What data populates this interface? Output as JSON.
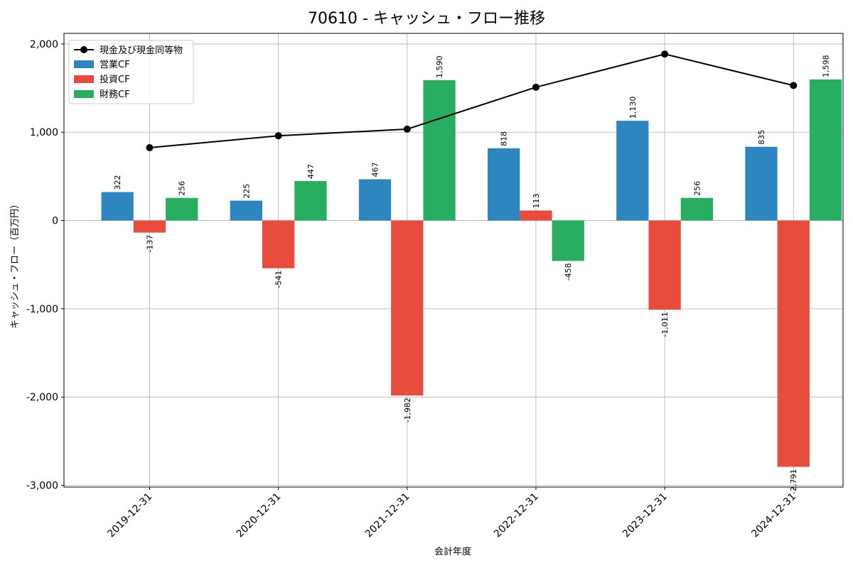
{
  "chart_data": {
    "type": "bar",
    "title": "70610 - キャッシュ・フロー推移",
    "xlabel": "会計年度",
    "ylabel": "キャッシュ・フロー（百万円）",
    "categories": [
      "2019-12-31",
      "2020-12-31",
      "2021-12-31",
      "2022-12-31",
      "2023-12-31",
      "2024-12-31"
    ],
    "series": [
      {
        "name": "営業CF",
        "color": "#2e86c1",
        "values": [
          322,
          225,
          467,
          818,
          1130,
          835
        ],
        "labels": [
          "322",
          "225",
          "467",
          "818",
          "1,130",
          "835"
        ]
      },
      {
        "name": "投資CF",
        "color": "#e74c3c",
        "values": [
          -137,
          -541,
          -1982,
          113,
          -1011,
          -2791
        ],
        "labels": [
          "-137",
          "-541",
          "-1,982",
          "113",
          "-1,011",
          "-2,791"
        ]
      },
      {
        "name": "財務CF",
        "color": "#27ae60",
        "values": [
          256,
          447,
          1590,
          -458,
          256,
          1598
        ],
        "labels": [
          "256",
          "447",
          "1,590",
          "-458",
          "256",
          "1,598"
        ]
      }
    ],
    "line": {
      "name": "現金及び現金同等物",
      "color": "#000000",
      "values": [
        825,
        960,
        1035,
        1510,
        1885,
        1530
      ]
    },
    "yticks": [
      2000,
      1000,
      0,
      -1000,
      -2000,
      -3000
    ],
    "ytick_labels": [
      "2,000",
      "1,000",
      "0",
      "-1,000",
      "-2,000",
      "-3,000"
    ],
    "ylim": [
      -3020,
      2120
    ],
    "grid": true,
    "legend_position": "top-left"
  }
}
